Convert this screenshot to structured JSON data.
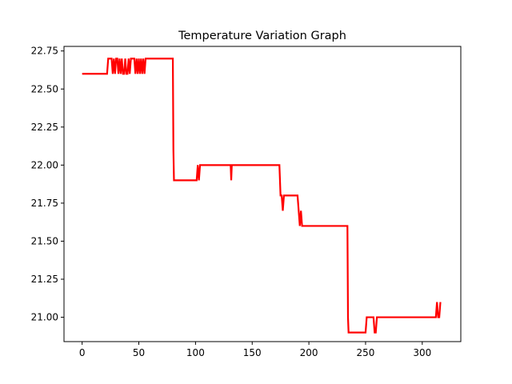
{
  "chart_data": {
    "type": "line",
    "title": "Temperature Variation Graph",
    "xlabel": "",
    "ylabel": "",
    "xlim": [
      -16,
      334
    ],
    "ylim": [
      20.84,
      22.78
    ],
    "x_ticks": [
      0,
      50,
      100,
      150,
      200,
      250,
      300
    ],
    "x_tick_labels": [
      "0",
      "50",
      "100",
      "150",
      "200",
      "250",
      "300"
    ],
    "y_ticks": [
      21.0,
      21.25,
      21.5,
      21.75,
      22.0,
      22.25,
      22.5,
      22.75
    ],
    "y_tick_labels": [
      "21.00",
      "21.25",
      "21.50",
      "21.75",
      "22.00",
      "22.25",
      "22.50",
      "22.75"
    ],
    "grid": false,
    "series": [
      {
        "color": "#ff0000",
        "x": [
          0,
          22,
          23,
          26,
          27,
          28,
          29,
          30,
          31,
          32,
          33,
          34,
          35,
          36,
          37,
          38,
          39,
          40,
          41,
          42,
          43,
          44,
          46,
          47,
          48,
          49,
          50,
          51,
          52,
          53,
          54,
          55,
          56,
          80,
          80.5,
          81,
          82,
          101,
          102,
          103,
          104,
          105,
          131,
          131.5,
          132,
          133,
          174,
          175,
          176,
          177,
          178,
          179,
          180,
          190,
          191,
          192,
          193,
          194,
          195,
          234,
          234.5,
          235,
          236,
          250,
          251,
          257,
          258,
          259,
          260,
          261,
          312,
          313,
          314,
          315,
          316
        ],
        "y": [
          22.6,
          22.6,
          22.7,
          22.7,
          22.6,
          22.7,
          22.6,
          22.7,
          22.7,
          22.6,
          22.7,
          22.6,
          22.7,
          22.6,
          22.6,
          22.7,
          22.6,
          22.6,
          22.7,
          22.6,
          22.7,
          22.7,
          22.7,
          22.6,
          22.7,
          22.6,
          22.7,
          22.6,
          22.7,
          22.6,
          22.7,
          22.6,
          22.7,
          22.7,
          22.1,
          21.9,
          21.9,
          21.9,
          22.0,
          21.9,
          22.0,
          22.0,
          22.0,
          21.9,
          22.0,
          22.0,
          22.0,
          21.8,
          21.8,
          21.7,
          21.8,
          21.8,
          21.8,
          21.8,
          21.7,
          21.6,
          21.7,
          21.6,
          21.6,
          21.6,
          21.0,
          20.9,
          20.9,
          20.9,
          21.0,
          21.0,
          20.9,
          20.9,
          21.0,
          21.0,
          21.0,
          21.1,
          21.0,
          21.0,
          21.1
        ]
      }
    ]
  }
}
